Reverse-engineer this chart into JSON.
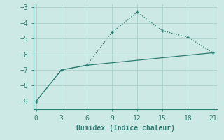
{
  "line1_x": [
    0,
    3,
    6,
    9,
    12,
    15,
    18,
    21
  ],
  "line1_y": [
    -9,
    -7,
    -6.7,
    -4.6,
    -3.3,
    -4.5,
    -4.9,
    -5.9
  ],
  "line2_x": [
    0,
    3,
    6,
    21
  ],
  "line2_y": [
    -9,
    -7,
    -6.7,
    -5.9
  ],
  "color": "#2e7d72",
  "bg_color": "#cce9e5",
  "grid_color": "#afd4cf",
  "xlabel": "Humidex (Indice chaleur)",
  "ylim": [
    -9.5,
    -2.8
  ],
  "xlim": [
    -0.3,
    21.5
  ],
  "yticks": [
    -9,
    -8,
    -7,
    -6,
    -5,
    -4,
    -3
  ],
  "xticks": [
    0,
    3,
    6,
    9,
    12,
    15,
    18,
    21
  ],
  "xlabel_fontsize": 7,
  "tick_fontsize": 7
}
